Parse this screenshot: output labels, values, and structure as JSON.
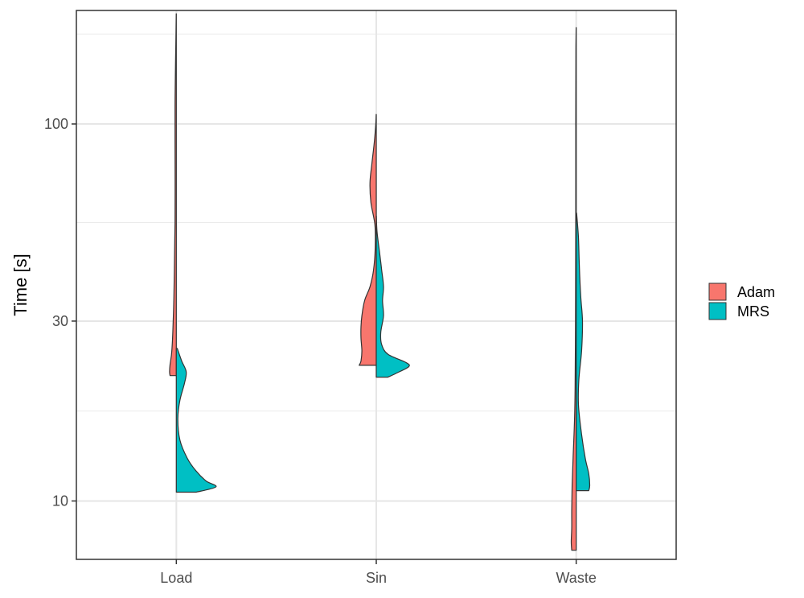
{
  "chart_data": {
    "type": "split-violin",
    "title": "",
    "xlabel": "",
    "ylabel": "Time [s]",
    "y_scale": "log10",
    "ylim": [
      7.0,
      200
    ],
    "y_ticks": [
      10,
      30,
      100
    ],
    "y_tick_labels": [
      "10",
      "30",
      "100"
    ],
    "y_minor_ticks": [
      17.32,
      54.77,
      173.2
    ],
    "categories": [
      "Load",
      "Sin",
      "Waste"
    ],
    "max_half_width_fraction": 0.45,
    "grid": true,
    "legend": {
      "position": "right",
      "entries": [
        "Adam",
        "MRS"
      ]
    },
    "colors": {
      "Adam": "#F8766D",
      "MRS": "#00BFC4"
    },
    "series": [
      {
        "name": "Adam",
        "side": "left",
        "violins": [
          {
            "category": "Load",
            "profile": [
              [
                21.5,
                0.07
              ],
              [
                22.0,
                0.075
              ],
              [
                23.0,
                0.07
              ],
              [
                25.0,
                0.05
              ],
              [
                30.0,
                0.035
              ],
              [
                37.0,
                0.025
              ],
              [
                45.0,
                0.02
              ],
              [
                55.0,
                0.015
              ],
              [
                70.0,
                0.014
              ],
              [
                90.0,
                0.015
              ],
              [
                110.0,
                0.015
              ],
              [
                130.0,
                0.012
              ],
              [
                150.0,
                0.008
              ],
              [
                175.0,
                0.004
              ],
              [
                196.0,
                0.001
              ]
            ]
          },
          {
            "category": "Sin",
            "profile": [
              [
                22.9,
                0.19
              ],
              [
                23.5,
                0.17
              ],
              [
                25.0,
                0.16
              ],
              [
                27.0,
                0.17
              ],
              [
                29.0,
                0.17
              ],
              [
                31.0,
                0.16
              ],
              [
                34.0,
                0.13
              ],
              [
                37.0,
                0.07
              ],
              [
                41.0,
                0.03
              ],
              [
                47.0,
                0.012
              ],
              [
                54.0,
                0.015
              ],
              [
                62.0,
                0.06
              ],
              [
                70.0,
                0.07
              ],
              [
                78.0,
                0.05
              ],
              [
                88.0,
                0.025
              ],
              [
                98.0,
                0.008
              ],
              [
                106.0,
                0.001
              ]
            ]
          },
          {
            "category": "Waste",
            "profile": [
              [
                7.4,
                0.05
              ],
              [
                7.8,
                0.055
              ],
              [
                8.5,
                0.05
              ],
              [
                9.5,
                0.05
              ],
              [
                11.0,
                0.045
              ],
              [
                13.0,
                0.035
              ],
              [
                16.0,
                0.02
              ],
              [
                20.0,
                0.012
              ],
              [
                30.0,
                0.008
              ],
              [
                45.0,
                0.006
              ],
              [
                70.0,
                0.005
              ],
              [
                100.0,
                0.005
              ],
              [
                130.0,
                0.004
              ],
              [
                160.0,
                0.003
              ],
              [
                180.0,
                0.001
              ]
            ]
          }
        ]
      },
      {
        "name": "MRS",
        "side": "right",
        "violins": [
          {
            "category": "Load",
            "profile": [
              [
                10.55,
                0.22
              ],
              [
                10.9,
                0.44
              ],
              [
                11.3,
                0.33
              ],
              [
                12.0,
                0.22
              ],
              [
                13.0,
                0.12
              ],
              [
                14.5,
                0.04
              ],
              [
                16.5,
                0.017
              ],
              [
                18.5,
                0.04
              ],
              [
                20.5,
                0.09
              ],
              [
                22.0,
                0.11
              ],
              [
                23.5,
                0.06
              ],
              [
                25.4,
                0.01
              ]
            ]
          },
          {
            "category": "Sin",
            "profile": [
              [
                21.3,
                0.13
              ],
              [
                21.8,
                0.22
              ],
              [
                22.7,
                0.36
              ],
              [
                23.3,
                0.33
              ],
              [
                24.5,
                0.13
              ],
              [
                26.0,
                0.06
              ],
              [
                28.0,
                0.05
              ],
              [
                31.0,
                0.08
              ],
              [
                34.0,
                0.07
              ],
              [
                37.0,
                0.08
              ],
              [
                41.0,
                0.06
              ],
              [
                46.0,
                0.035
              ],
              [
                52.0,
                0.008
              ],
              [
                57.0,
                0.001
              ]
            ]
          },
          {
            "category": "Waste",
            "profile": [
              [
                10.65,
                0.14
              ],
              [
                11.0,
                0.15
              ],
              [
                11.8,
                0.14
              ],
              [
                13.0,
                0.1
              ],
              [
                15.0,
                0.06
              ],
              [
                18.0,
                0.025
              ],
              [
                21.0,
                0.03
              ],
              [
                25.0,
                0.06
              ],
              [
                30.0,
                0.07
              ],
              [
                35.0,
                0.05
              ],
              [
                42.0,
                0.035
              ],
              [
                50.0,
                0.025
              ],
              [
                58.0,
                0.005
              ]
            ]
          }
        ]
      }
    ]
  }
}
